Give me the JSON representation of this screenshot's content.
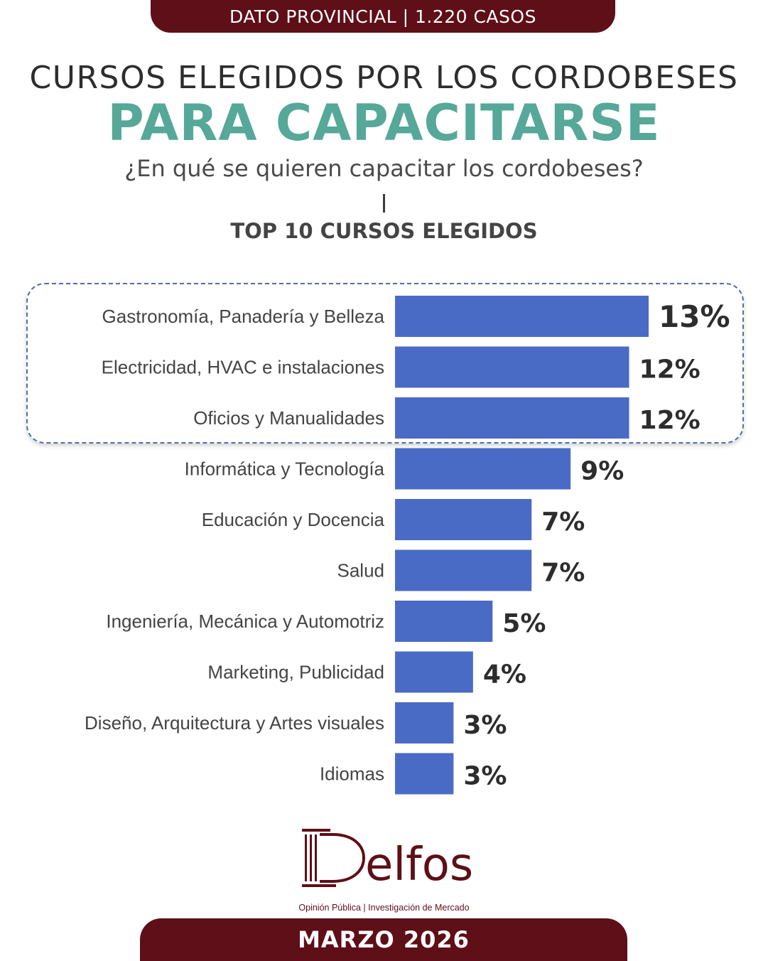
{
  "header": {
    "banner": "DATO PROVINCIAL | 1.220 CASOS",
    "title_line1": "CURSOS ELEGIDOS POR LOS CORDOBESES",
    "title_line2": "PARA CAPACITARSE",
    "subtitle": "¿En qué se quieren capacitar los cordobeses?"
  },
  "chart_data": {
    "type": "bar",
    "orientation": "horizontal",
    "title": "TOP 10 CURSOS ELEGIDOS",
    "categories": [
      "Gastronomía, Panadería y Belleza",
      "Electricidad, HVAC e instalaciones",
      "Oficios y Manualidades",
      "Informática y Tecnología",
      "Educación y Docencia",
      "Salud",
      "Ingeniería, Mecánica y Automotriz",
      "Marketing, Publicidad",
      "Diseño, Arquitectura y Artes visuales",
      "Idiomas"
    ],
    "values": [
      13,
      12,
      12,
      9,
      7,
      7,
      5,
      4,
      3,
      3
    ],
    "value_labels": [
      "13%",
      "12%",
      "12%",
      "9%",
      "7%",
      "7%",
      "5%",
      "4%",
      "3%",
      "3%"
    ],
    "unit": "%",
    "highlighted_top": 3,
    "bar_color": "#4a6bc5",
    "xlim": [
      0,
      13
    ]
  },
  "logo": {
    "name": "Delfos",
    "tagline": "Opinión Pública | Investigación de Mercado",
    "color": "#5e0f17"
  },
  "footer": {
    "date": "MARZO 2026"
  },
  "colors": {
    "banner": "#5e0f17",
    "accent": "#56a898"
  }
}
